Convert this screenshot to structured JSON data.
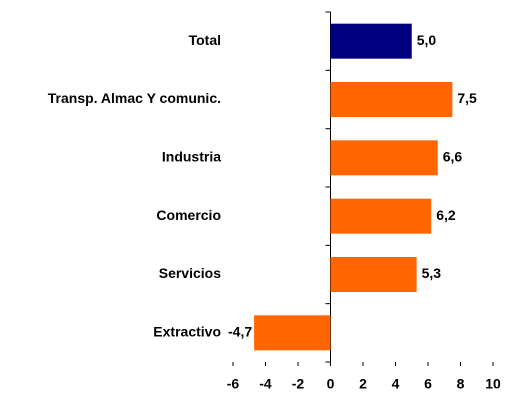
{
  "chart_data": {
    "type": "hbar",
    "categories": [
      "Total",
      "Transp. Almac Y comunic.",
      "Industria",
      "Comercio",
      "Servicios",
      "Extractivo"
    ],
    "values": [
      5.0,
      7.5,
      6.6,
      6.2,
      5.3,
      -4.7
    ],
    "value_labels": [
      "5,0",
      "7,5",
      "6,6",
      "6,2",
      "5,3",
      "-4,7"
    ],
    "colors": [
      "#000080",
      "#ff6600",
      "#ff6600",
      "#ff6600",
      "#ff6600",
      "#ff6600"
    ],
    "xlim": [
      -6,
      10
    ],
    "xticks": [
      -6,
      -4,
      -2,
      0,
      2,
      4,
      6,
      8,
      10
    ]
  }
}
